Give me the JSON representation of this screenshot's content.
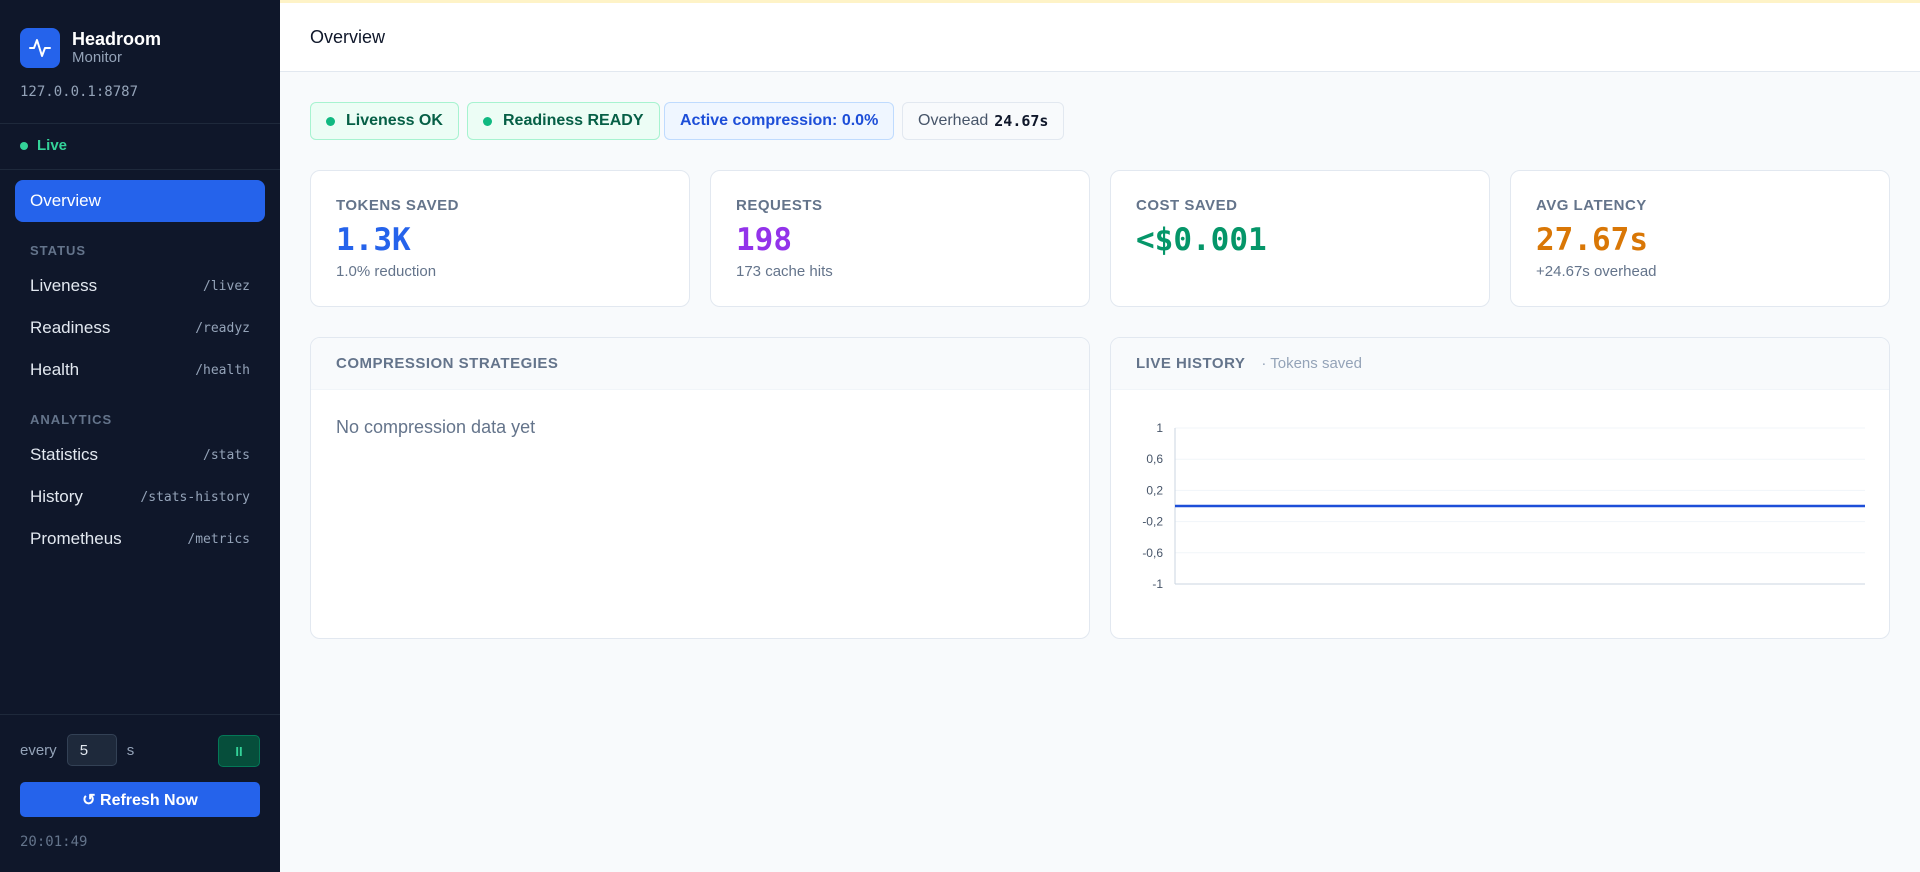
{
  "sidebar": {
    "brand_name": "Headroom",
    "brand_sub": "Monitor",
    "host": "127.0.0.1:8787",
    "live_label": "Live",
    "active_item": "Overview",
    "sections": [
      {
        "label": "STATUS",
        "items": [
          {
            "label": "Liveness",
            "path": "/livez"
          },
          {
            "label": "Readiness",
            "path": "/readyz"
          },
          {
            "label": "Health",
            "path": "/health"
          }
        ]
      },
      {
        "label": "ANALYTICS",
        "items": [
          {
            "label": "Statistics",
            "path": "/stats"
          },
          {
            "label": "History",
            "path": "/stats-history"
          },
          {
            "label": "Prometheus",
            "path": "/metrics"
          }
        ]
      }
    ],
    "refresh": {
      "every_label": "every",
      "interval_value": "5",
      "unit_label": "s",
      "pause_label": "II",
      "refresh_label": "↺ Refresh Now",
      "last_updated": "20:01:49"
    }
  },
  "header": {
    "title": "Overview"
  },
  "badges": {
    "liveness": "Liveness OK",
    "readiness": "Readiness READY",
    "compression": "Active compression: 0.0%",
    "overhead_label": "Overhead",
    "overhead_value": "24.67s"
  },
  "stats": [
    {
      "label": "TOKENS SAVED",
      "value": "1.3K",
      "sub": "1.0% reduction",
      "color": "#2563eb"
    },
    {
      "label": "REQUESTS",
      "value": "198",
      "sub": "173 cache hits",
      "color": "#9333ea"
    },
    {
      "label": "COST SAVED",
      "value": "<$0.001",
      "sub": "",
      "color": "#059669"
    },
    {
      "label": "AVG LATENCY",
      "value": "27.67s",
      "sub": "+24.67s overhead",
      "color": "#d97706"
    }
  ],
  "strategies": {
    "title": "COMPRESSION STRATEGIES",
    "empty_text": "No compression data yet"
  },
  "history": {
    "title": "LIVE HISTORY",
    "subtitle": "· Tokens saved"
  },
  "chart_data": {
    "type": "line",
    "title": "",
    "xlabel": "",
    "ylabel": "",
    "ylim": [
      -1,
      1
    ],
    "yticks": [
      "1",
      "0,6",
      "0,2",
      "-0,2",
      "-0,6",
      "-1"
    ],
    "grid": true,
    "series": [
      {
        "values": [
          0,
          0,
          0,
          0,
          0,
          0,
          0,
          0,
          0,
          0,
          0,
          0
        ],
        "color": "#1d4ed8"
      }
    ]
  }
}
